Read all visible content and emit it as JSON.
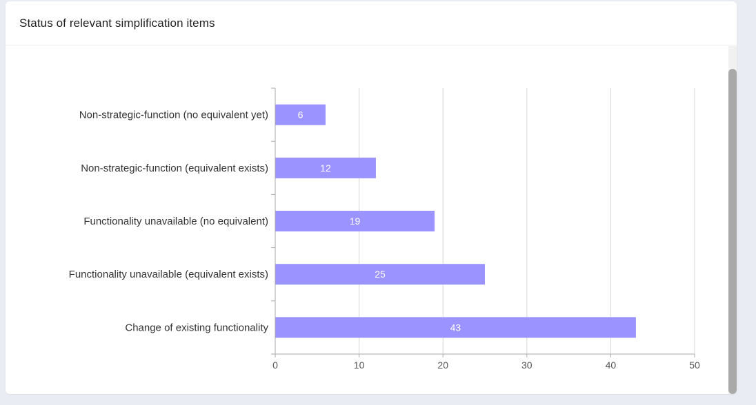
{
  "card": {
    "title": "Status of relevant simplification items"
  },
  "colors": {
    "bar": "#9b93ff",
    "bar_label": "#ffffff",
    "grid": "#d6d6d6",
    "axis": "#aaaaaa",
    "text": "#333333",
    "tick_text": "#555555"
  },
  "chart_data": {
    "type": "bar",
    "orientation": "horizontal",
    "title": "",
    "xlabel": "",
    "ylabel": "",
    "categories": [
      "Non-strategic-function (no equivalent yet)",
      "Non-strategic-function (equivalent exists)",
      "Functionality unavailable (no equivalent)",
      "Functionality unavailable (equivalent exists)",
      "Change of existing functionality"
    ],
    "values": [
      6,
      12,
      19,
      25,
      43
    ],
    "xlim": [
      0,
      50
    ],
    "x_ticks": [
      0,
      10,
      20,
      30,
      40,
      50
    ],
    "grid": true,
    "data_labels": true
  }
}
